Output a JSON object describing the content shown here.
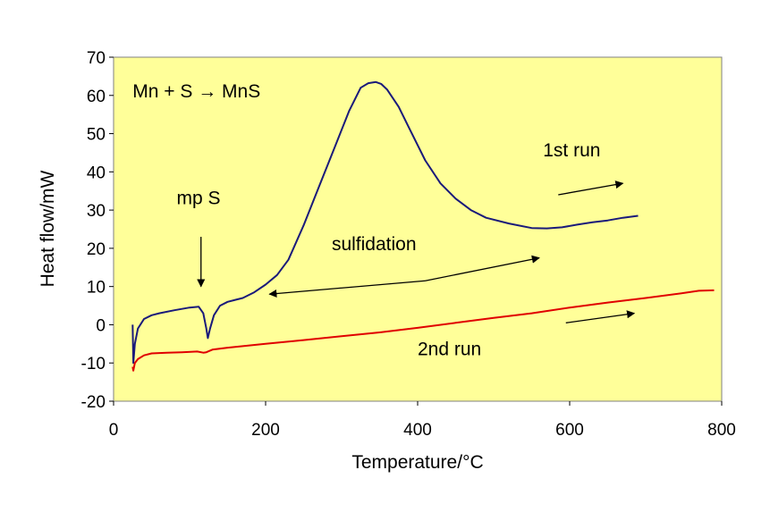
{
  "chart_data": {
    "type": "line",
    "xlabel": "Temperature/°C",
    "ylabel": "Heat flow/mW",
    "xlim": [
      0,
      800
    ],
    "ylim": [
      -20,
      70
    ],
    "x_ticks": [
      0,
      200,
      400,
      600,
      800
    ],
    "y_ticks": [
      -20,
      -10,
      0,
      10,
      20,
      30,
      40,
      50,
      60,
      70
    ],
    "plot_background": "#FFFF99",
    "grid": false,
    "legend": "none",
    "series": [
      {
        "color": "#1a1a7a",
        "x": [
          25,
          26,
          28,
          32,
          40,
          50,
          60,
          80,
          100,
          112,
          118,
          122,
          124,
          127,
          132,
          140,
          150,
          160,
          170,
          185,
          200,
          215,
          230,
          250,
          270,
          290,
          310,
          325,
          335,
          345,
          352,
          360,
          375,
          390,
          410,
          430,
          450,
          470,
          490,
          520,
          550,
          570,
          590,
          610,
          630,
          650,
          670,
          690
        ],
        "y": [
          0,
          -10,
          -5,
          -1,
          1.5,
          2.5,
          3,
          3.8,
          4.5,
          4.7,
          3,
          -1,
          -3.5,
          -1,
          2.5,
          5,
          6,
          6.5,
          7,
          8.5,
          10.5,
          13,
          17,
          26,
          36,
          46,
          56,
          62,
          63.2,
          63.5,
          63,
          61.5,
          57,
          51,
          43,
          37,
          33,
          30,
          28,
          26.5,
          25.3,
          25.2,
          25.5,
          26.2,
          26.8,
          27.3,
          28,
          28.5
        ]
      },
      {
        "color": "#e00000",
        "x": [
          25,
          26,
          28,
          32,
          40,
          50,
          70,
          90,
          110,
          118,
          122,
          130,
          150,
          200,
          250,
          300,
          350,
          400,
          450,
          500,
          550,
          600,
          650,
          700,
          750,
          770,
          790
        ],
        "y": [
          -11,
          -12,
          -10,
          -9,
          -8,
          -7.5,
          -7.3,
          -7.2,
          -7,
          -7.3,
          -7.2,
          -6.5,
          -6,
          -5,
          -4,
          -3,
          -2,
          -0.8,
          0.5,
          1.8,
          3,
          4.5,
          5.8,
          7,
          8.3,
          8.9,
          9
        ]
      }
    ],
    "annotations": [
      {
        "text": "Mn + S → MnS",
        "x": 25,
        "y": 59.5
      },
      {
        "text": "mp S",
        "x": 83,
        "y": 31.5
      },
      {
        "text": "1st run",
        "x": 565,
        "y": 44
      },
      {
        "text": "sulfidation",
        "x": 287,
        "y": 19.5
      },
      {
        "text": "2nd run",
        "x": 400,
        "y": -8
      }
    ],
    "arrows": [
      {
        "name": "mp-s-arrow",
        "from": [
          115,
          23
        ],
        "to": [
          115,
          10
        ]
      },
      {
        "name": "first-run-arrow",
        "from": [
          585,
          34
        ],
        "to": [
          670,
          37
        ]
      },
      {
        "name": "sulfidation-arrow-left",
        "from": [
          410,
          11.5
        ],
        "to": [
          205,
          8
        ]
      },
      {
        "name": "sulfidation-arrow-right",
        "from": [
          410,
          11.5
        ],
        "to": [
          560,
          17.5
        ]
      },
      {
        "name": "second-run-arrow",
        "from": [
          595,
          0.5
        ],
        "to": [
          685,
          3
        ]
      }
    ]
  }
}
